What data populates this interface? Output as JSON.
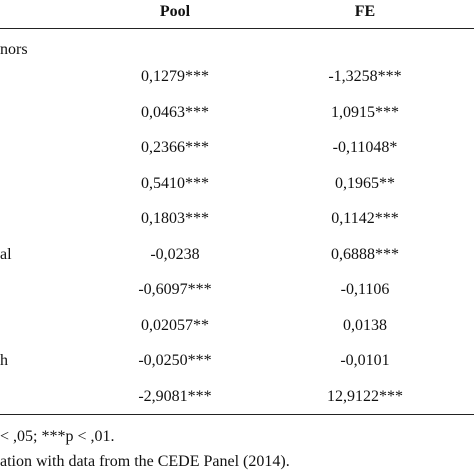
{
  "table": {
    "header": {
      "pool": "Pool",
      "fe": "FE"
    },
    "section": "nors",
    "rows": [
      {
        "pool": "0,1279***",
        "fe": "-1,3258***"
      },
      {
        "pool": "0,0463***",
        "fe": "1,0915***"
      },
      {
        "pool": "0,2366***",
        "fe": "-0,11048*"
      },
      {
        "pool": "0,5410***",
        "fe": "0,1965**"
      },
      {
        "pool": "0,1803***",
        "fe": "0,1142***"
      },
      {
        "label": "al",
        "pool": "-0,0238",
        "fe": "0,6888***"
      },
      {
        "pool": "-0,6097***",
        "fe": "-0,1106"
      },
      {
        "pool": "0,02057**",
        "fe": "0,0138"
      },
      {
        "label": "h",
        "pool": "-0,0250***",
        "fe": "-0,0101"
      },
      {
        "pool": "-2,9081***",
        "fe": "12,9122***"
      }
    ]
  },
  "notes": [
    "< ,05; ***p < ,01.",
    "ation with data from the CEDE Panel (2014)."
  ]
}
